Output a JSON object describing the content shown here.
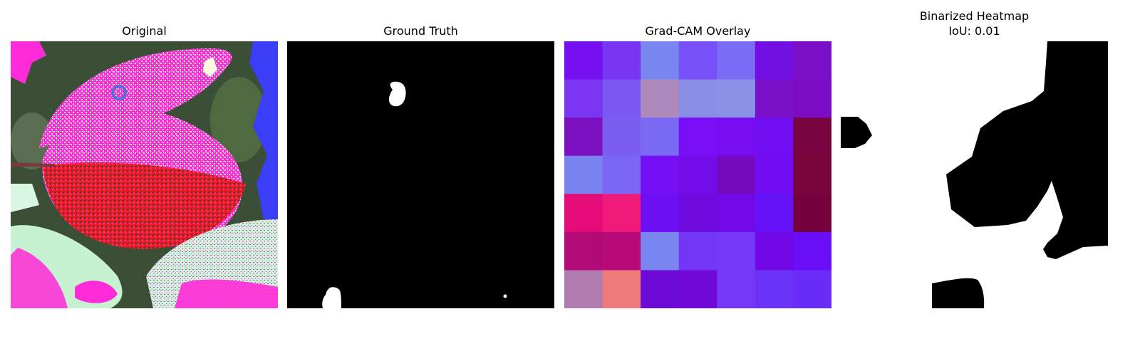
{
  "panels": [
    {
      "title": "Original"
    },
    {
      "title": "Ground Truth"
    },
    {
      "title": "Grad-CAM Overlay"
    },
    {
      "title": "Binarized Heatmap",
      "subtitle": "IoU: 0.01"
    }
  ],
  "colors": {
    "mask_foreground": "#ffffff",
    "mask_background": "#000000"
  },
  "gradcam": {
    "rows": 7,
    "cols": 7,
    "cells": [
      [
        "#7710f0",
        "#7836f3",
        "#7986ef",
        "#7850f8",
        "#7a6cf4",
        "#7210e4",
        "#7a0ec6"
      ],
      [
        "#7a36f2",
        "#7a58f1",
        "#ae8abc",
        "#8a8ee6",
        "#8a92e8",
        "#7a10c8",
        "#7a0cc4"
      ],
      [
        "#7a10bf",
        "#7a5ef2",
        "#7a6af3",
        "#780ff7",
        "#770df0",
        "#720ef2",
        "#78053f"
      ],
      [
        "#7a82ef",
        "#7c66f4",
        "#740ff4",
        "#720ce8",
        "#7409bd",
        "#720cf2",
        "#7a043c"
      ],
      [
        "#e50b78",
        "#ef1a7a",
        "#6c0ff2",
        "#6f0bde",
        "#7209e6",
        "#6612f8",
        "#74003c"
      ],
      [
        "#b20a76",
        "#b80a78",
        "#7a86ef",
        "#7436f5",
        "#7438f6",
        "#7308e6",
        "#6a0ef8"
      ],
      [
        "#b07cb0",
        "#ee7a7a",
        "#6e0ad6",
        "#710ad9",
        "#7438f6",
        "#6a32f8",
        "#6a2cf8"
      ]
    ]
  }
}
